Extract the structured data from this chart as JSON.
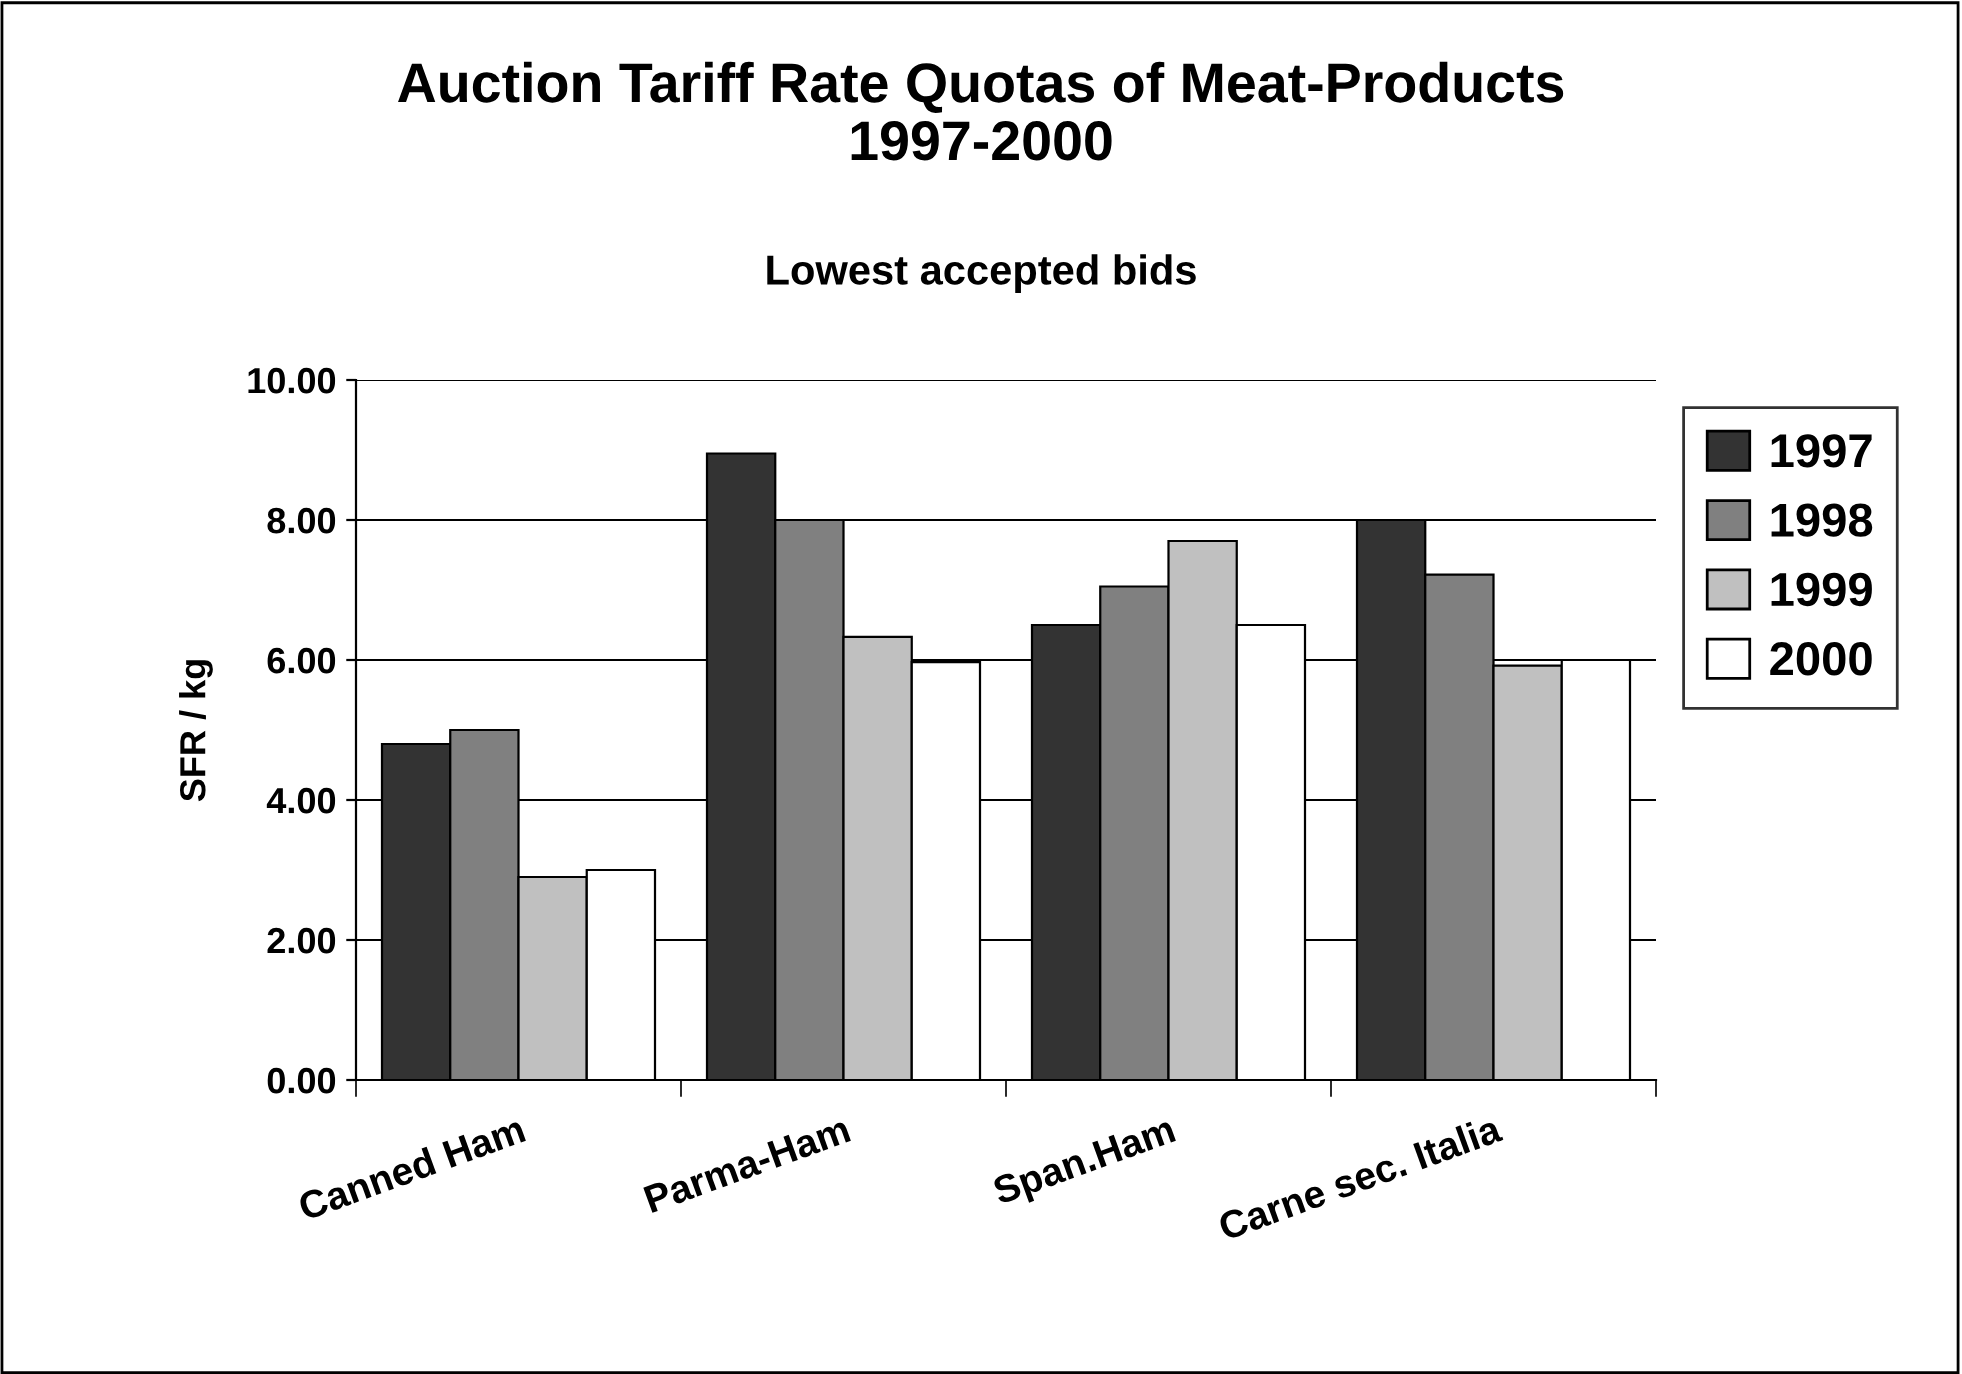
{
  "chart_data": {
    "type": "bar",
    "title": "Auction Tariff Rate Quotas of Meat-Products\n1997-2000",
    "subtitle": "Lowest accepted bids",
    "ylabel": "SFR / kg",
    "categories": [
      "Canned Ham",
      "Parma-Ham",
      "Span.Ham",
      "Carne sec. Italia"
    ],
    "series": [
      {
        "name": "1997",
        "color": "#333333",
        "values": [
          4.8,
          8.95,
          6.5,
          8.0
        ]
      },
      {
        "name": "1998",
        "color": "#808080",
        "values": [
          5.0,
          8.0,
          7.05,
          7.22
        ]
      },
      {
        "name": "1999",
        "color": "#c0c0c0",
        "values": [
          2.9,
          6.33,
          7.7,
          5.92
        ]
      },
      {
        "name": "2000",
        "color": "#ffffff",
        "values": [
          3.0,
          5.97,
          6.5,
          6.0
        ]
      }
    ],
    "ylim": [
      0,
      10
    ],
    "yticks": [
      {
        "value": 0,
        "label": "0.00"
      },
      {
        "value": 2,
        "label": "2.00"
      },
      {
        "value": 4,
        "label": "4.00"
      },
      {
        "value": 6,
        "label": "6.00"
      },
      {
        "value": 8,
        "label": "8.00"
      },
      {
        "value": 10,
        "label": "10.00"
      }
    ],
    "grid": "y",
    "legend": "right"
  }
}
